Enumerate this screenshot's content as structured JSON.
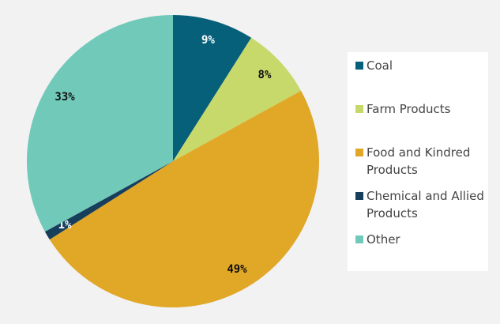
{
  "chart_data": {
    "type": "pie",
    "categories": [
      "Coal",
      "Farm Products",
      "Food and Kindred Products",
      "Chemical and Allied Products",
      "Other"
    ],
    "values": [
      9,
      8,
      49,
      1,
      33
    ],
    "value_labels": [
      "9%",
      "8%",
      "49%",
      "1%",
      "33%"
    ],
    "colors": [
      "#07607a",
      "#c8d96b",
      "#e1a727",
      "#173f5c",
      "#71c9b9"
    ],
    "legend": "right"
  }
}
